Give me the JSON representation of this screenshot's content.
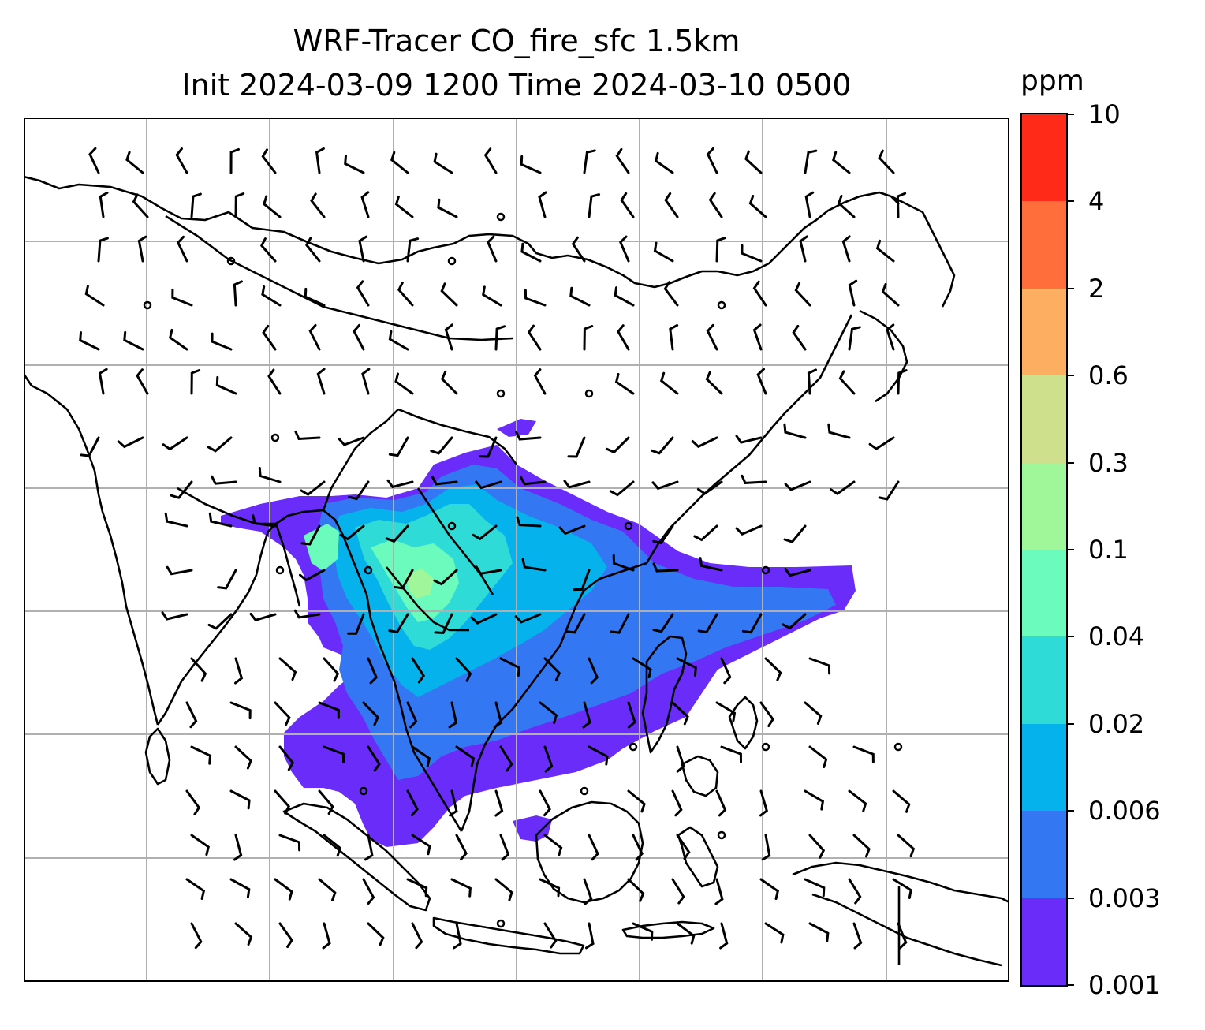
{
  "title": {
    "line1": "WRF-Tracer CO_fire_sfc 1.5km",
    "line2": "Init 2024-03-09 1200 Time 2024-03-10 0500"
  },
  "colorbar": {
    "unit": "ppm",
    "tick_labels": [
      "0.001",
      "0.003",
      "0.006",
      "0.02",
      "0.04",
      "0.1",
      "0.3",
      "0.6",
      "2",
      "4",
      "10"
    ],
    "level_colors": [
      "#6a2cf8",
      "#3377f2",
      "#06b2ec",
      "#2edbd7",
      "#6bfbbd",
      "#9ff79a",
      "#cfe08c",
      "#fdae61",
      "#ff6e3b",
      "#ff2a18"
    ]
  },
  "map": {
    "field": "CO_fire_sfc",
    "gridlines": true,
    "overlays": [
      "coastlines",
      "country-borders",
      "wind-barbs"
    ],
    "colors": {
      "coastline": "#000000",
      "gridline": "#b0b0b0",
      "barb": "#000000"
    }
  }
}
